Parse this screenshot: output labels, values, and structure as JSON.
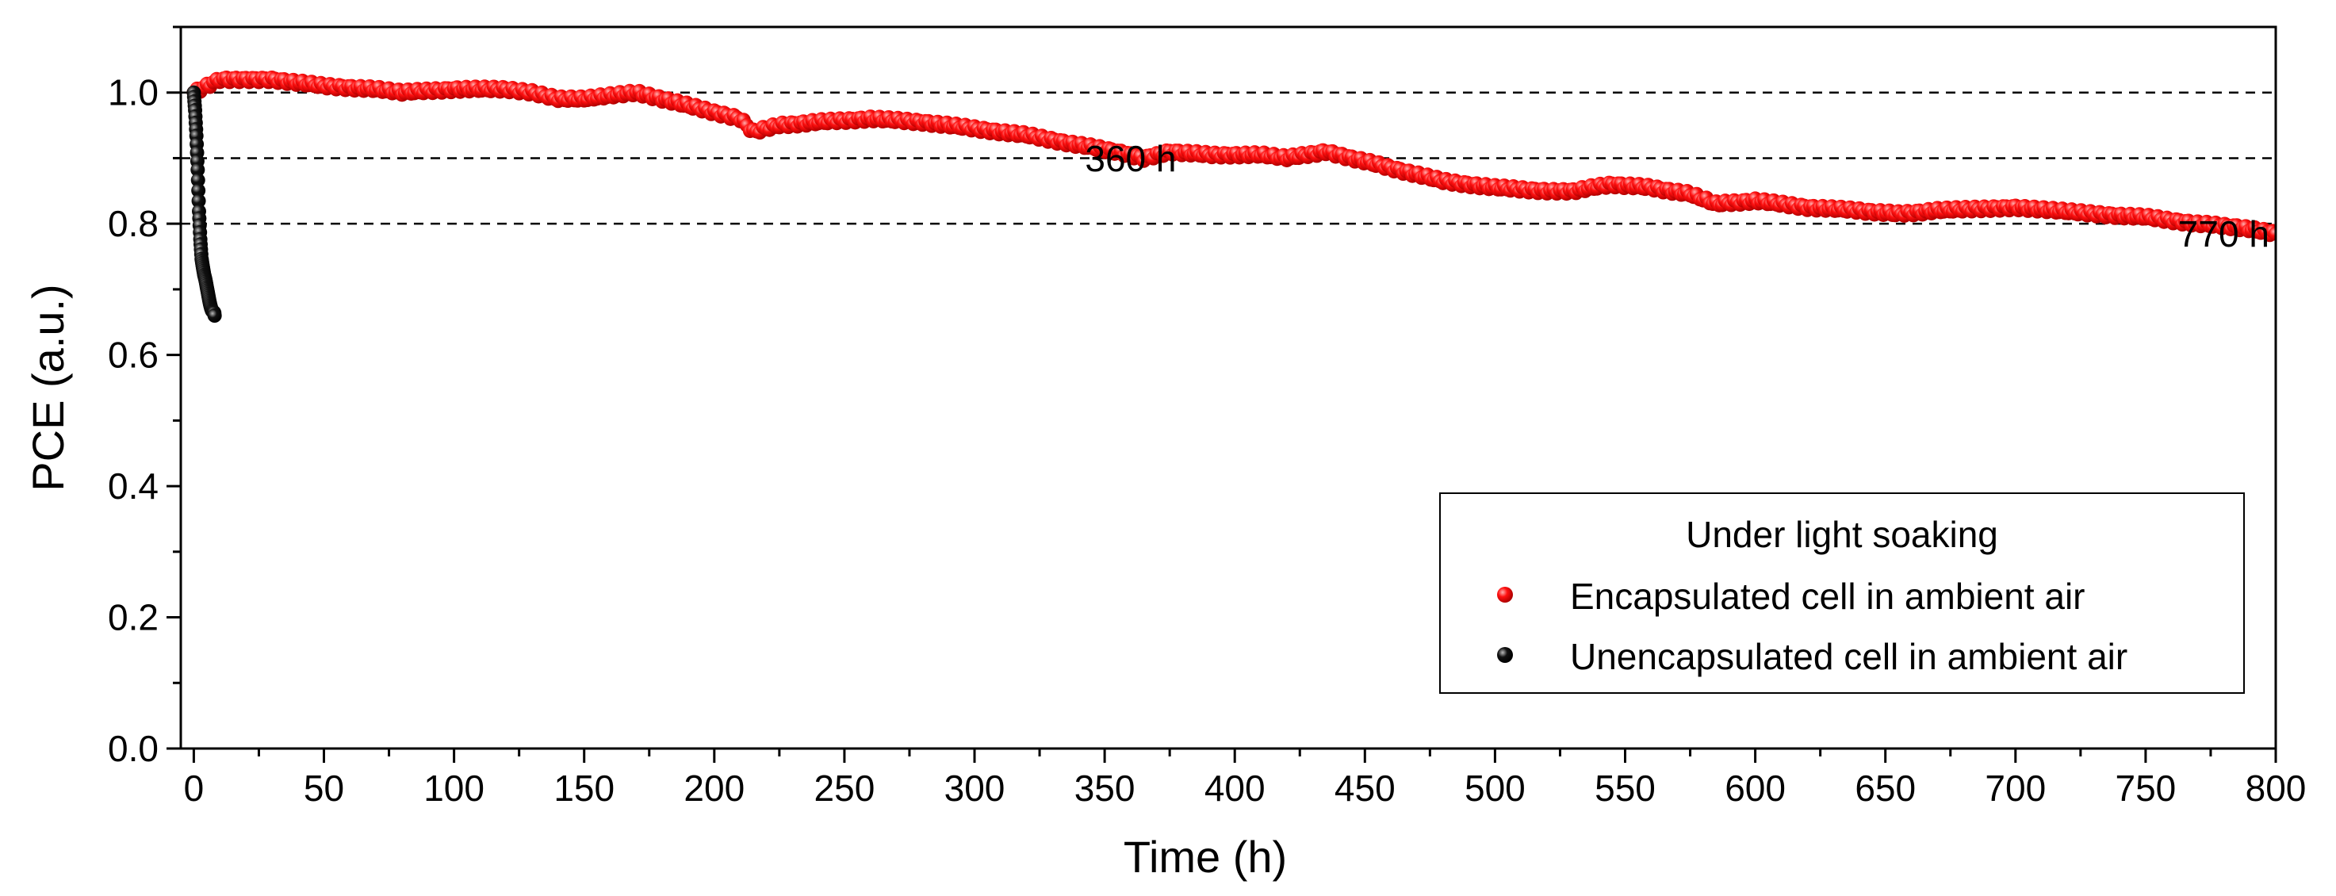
{
  "chart_data": {
    "type": "scatter",
    "title": "",
    "xlabel": "Time (h)",
    "ylabel": "PCE (a.u.)",
    "xlim": [
      -5,
      800
    ],
    "ylim": [
      0.0,
      1.1
    ],
    "xticks": [
      0,
      50,
      100,
      150,
      200,
      250,
      300,
      350,
      400,
      450,
      500,
      550,
      600,
      650,
      700,
      750,
      800
    ],
    "yticks": [
      0.0,
      0.2,
      0.4,
      0.6,
      0.8,
      1.0
    ],
    "xtick_labels": [
      "0",
      "50",
      "100",
      "150",
      "200",
      "250",
      "300",
      "350",
      "400",
      "450",
      "500",
      "550",
      "600",
      "650",
      "700",
      "750",
      "800"
    ],
    "ytick_labels": [
      "0.0",
      "0.2",
      "0.4",
      "0.6",
      "0.8",
      "1.0"
    ],
    "reference_lines": [
      1.0,
      0.9,
      0.8
    ],
    "grid": false,
    "legend_placement": "bottom-right",
    "legend_title": "Under light soaking",
    "annotations": [
      {
        "text": "360 h",
        "x": 360,
        "y": 0.88
      },
      {
        "text": "770 h",
        "x": 780,
        "y": 0.765
      }
    ],
    "series": [
      {
        "name": "Encapsulated cell in ambient air",
        "color": "#ff1010",
        "points": [
          [
            0,
            1.0
          ],
          [
            5,
            1.01
          ],
          [
            10,
            1.02
          ],
          [
            20,
            1.02
          ],
          [
            30,
            1.02
          ],
          [
            50,
            1.01
          ],
          [
            70,
            1.005
          ],
          [
            80,
            1.0
          ],
          [
            100,
            1.005
          ],
          [
            120,
            1.005
          ],
          [
            130,
            1.0
          ],
          [
            140,
            0.99
          ],
          [
            150,
            0.99
          ],
          [
            160,
            0.995
          ],
          [
            170,
            1.0
          ],
          [
            180,
            0.99
          ],
          [
            200,
            0.97
          ],
          [
            210,
            0.96
          ],
          [
            215,
            0.94
          ],
          [
            225,
            0.95
          ],
          [
            240,
            0.955
          ],
          [
            260,
            0.96
          ],
          [
            280,
            0.955
          ],
          [
            300,
            0.945
          ],
          [
            320,
            0.935
          ],
          [
            340,
            0.92
          ],
          [
            355,
            0.91
          ],
          [
            365,
            0.9
          ],
          [
            375,
            0.91
          ],
          [
            390,
            0.905
          ],
          [
            410,
            0.905
          ],
          [
            420,
            0.9
          ],
          [
            435,
            0.91
          ],
          [
            445,
            0.9
          ],
          [
            460,
            0.885
          ],
          [
            480,
            0.865
          ],
          [
            500,
            0.855
          ],
          [
            520,
            0.85
          ],
          [
            530,
            0.85
          ],
          [
            545,
            0.86
          ],
          [
            560,
            0.855
          ],
          [
            575,
            0.845
          ],
          [
            585,
            0.83
          ],
          [
            600,
            0.835
          ],
          [
            620,
            0.825
          ],
          [
            640,
            0.82
          ],
          [
            655,
            0.815
          ],
          [
            670,
            0.82
          ],
          [
            700,
            0.825
          ],
          [
            730,
            0.815
          ],
          [
            750,
            0.81
          ],
          [
            770,
            0.8
          ],
          [
            785,
            0.795
          ],
          [
            800,
            0.785
          ]
        ]
      },
      {
        "name": "Unencapsulated cell in ambient air",
        "color": "#111111",
        "points": [
          [
            0,
            1.0
          ],
          [
            0.5,
            0.97
          ],
          [
            1,
            0.93
          ],
          [
            1.5,
            0.88
          ],
          [
            2,
            0.82
          ],
          [
            2.5,
            0.78
          ],
          [
            3,
            0.75
          ],
          [
            4,
            0.72
          ],
          [
            5,
            0.7
          ],
          [
            6,
            0.685
          ],
          [
            7,
            0.67
          ],
          [
            8,
            0.66
          ]
        ]
      }
    ]
  }
}
